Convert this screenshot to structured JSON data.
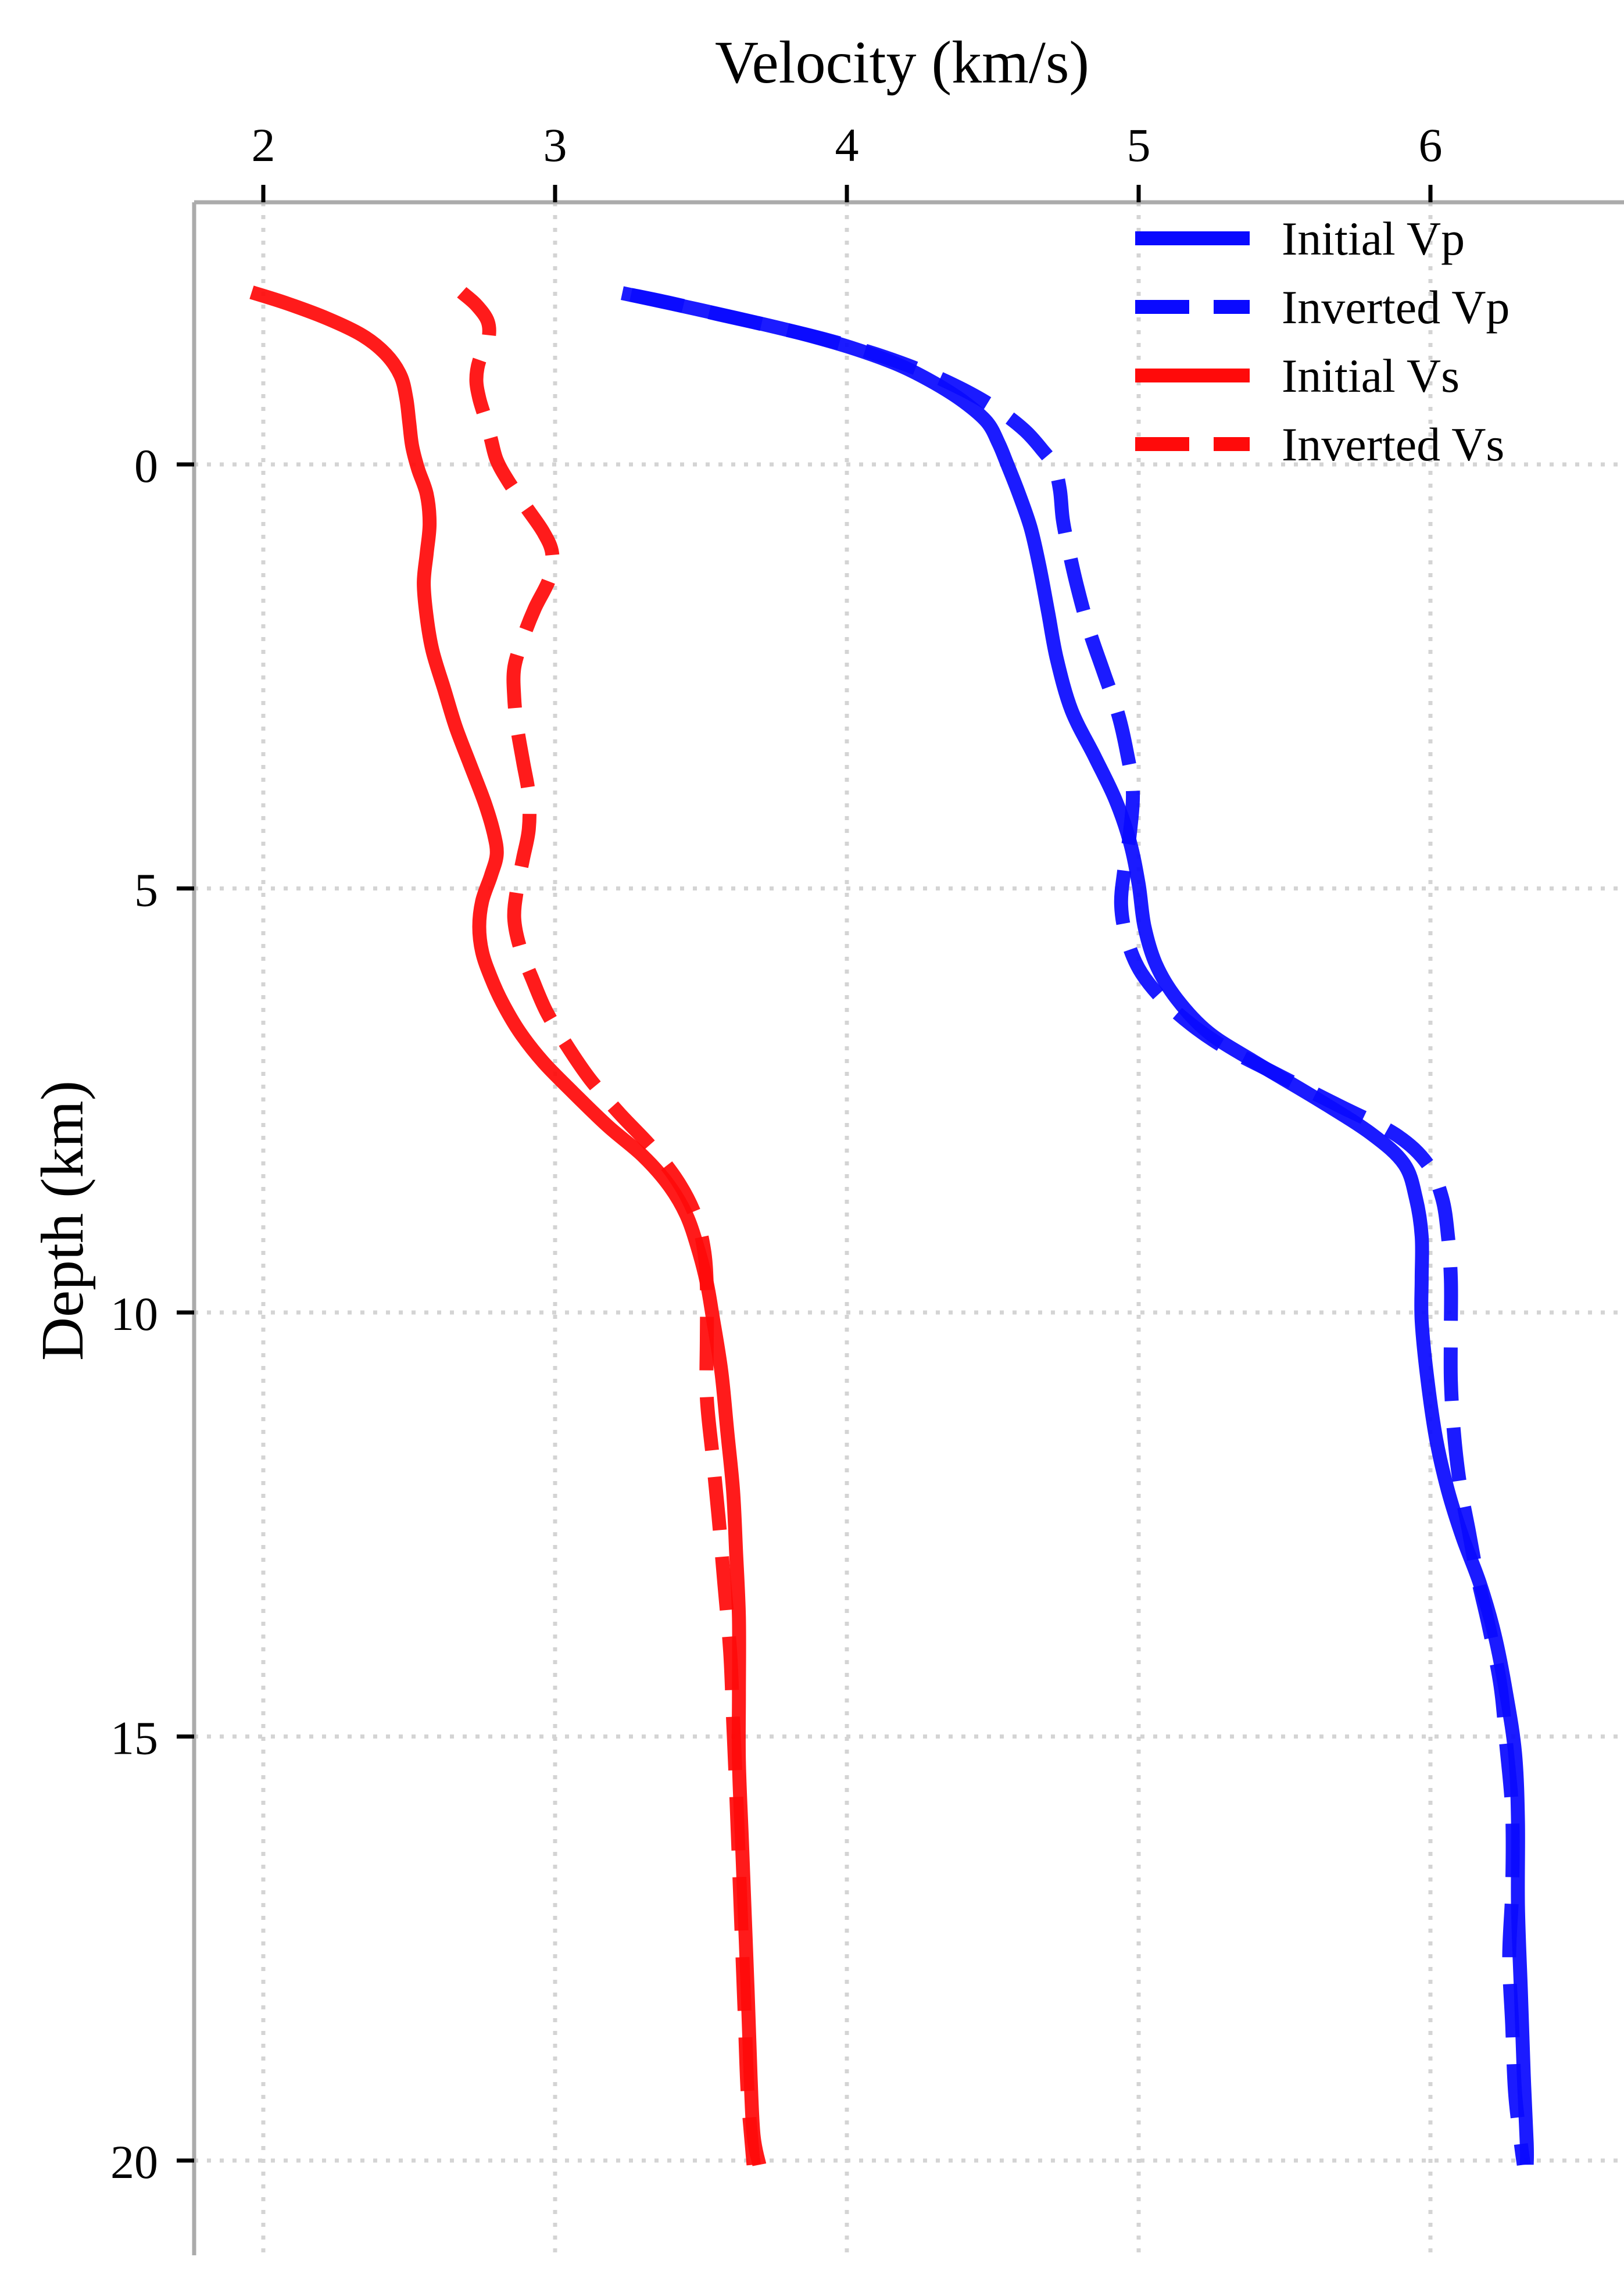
{
  "chart_data": {
    "type": "line",
    "title": "",
    "xlabel": "Velocity (km/s)",
    "ylabel": "Depth (km)",
    "x_axis_position": "top",
    "x_ticks": [
      2,
      3,
      4,
      5,
      6
    ],
    "y_ticks": [
      0,
      5,
      10,
      15,
      20
    ],
    "xlim": [
      1.77,
      6.66
    ],
    "ylim": [
      21.1,
      -3.1
    ],
    "y_axis_inverted": true,
    "grid": "dotted",
    "legend_position": "upper-right",
    "colors": {
      "vp": "#0a0aff",
      "vs": "#ff0a0a",
      "gridline": "#d4d4d4",
      "spine": "#ababab",
      "tick": "#000000",
      "text": "#000000"
    },
    "series": [
      {
        "name": "Initial Vp",
        "color": "#0a0aff",
        "style": "solid",
        "points": [
          [
            3.23,
            -2.02
          ],
          [
            3.34,
            -1.94
          ],
          [
            3.5,
            -1.82
          ],
          [
            3.68,
            -1.68
          ],
          [
            3.86,
            -1.53
          ],
          [
            4.03,
            -1.36
          ],
          [
            4.18,
            -1.17
          ],
          [
            4.3,
            -0.96
          ],
          [
            4.4,
            -0.74
          ],
          [
            4.48,
            -0.5
          ],
          [
            4.52,
            -0.25
          ],
          [
            4.55,
            0.0
          ],
          [
            4.59,
            0.35
          ],
          [
            4.63,
            0.75
          ],
          [
            4.66,
            1.2
          ],
          [
            4.69,
            1.75
          ],
          [
            4.72,
            2.3
          ],
          [
            4.77,
            2.9
          ],
          [
            4.85,
            3.45
          ],
          [
            4.92,
            3.95
          ],
          [
            4.97,
            4.45
          ],
          [
            5.0,
            4.95
          ],
          [
            5.02,
            5.45
          ],
          [
            5.06,
            5.9
          ],
          [
            5.13,
            6.3
          ],
          [
            5.24,
            6.7
          ],
          [
            5.4,
            7.05
          ],
          [
            5.62,
            7.5
          ],
          [
            5.8,
            7.9
          ],
          [
            5.91,
            8.25
          ],
          [
            5.95,
            8.65
          ],
          [
            5.97,
            9.1
          ],
          [
            5.97,
            9.6
          ],
          [
            5.97,
            10.1
          ],
          [
            5.99,
            10.8
          ],
          [
            6.02,
            11.5
          ],
          [
            6.06,
            12.1
          ],
          [
            6.11,
            12.65
          ],
          [
            6.17,
            13.2
          ],
          [
            6.22,
            13.8
          ],
          [
            6.26,
            14.5
          ],
          [
            6.29,
            15.2
          ],
          [
            6.3,
            16.0
          ],
          [
            6.3,
            17.0
          ],
          [
            6.31,
            18.0
          ],
          [
            6.32,
            19.0
          ],
          [
            6.33,
            19.8
          ],
          [
            6.33,
            20.05
          ]
        ]
      },
      {
        "name": "Inverted Vp",
        "color": "#0a0aff",
        "style": "dashed",
        "points": [
          [
            3.26,
            -2.0
          ],
          [
            3.4,
            -1.9
          ],
          [
            3.56,
            -1.77
          ],
          [
            3.74,
            -1.63
          ],
          [
            3.92,
            -1.48
          ],
          [
            4.1,
            -1.3
          ],
          [
            4.26,
            -1.1
          ],
          [
            4.4,
            -0.88
          ],
          [
            4.52,
            -0.64
          ],
          [
            4.61,
            -0.4
          ],
          [
            4.67,
            -0.17
          ],
          [
            4.71,
            0.02
          ],
          [
            4.73,
            0.3
          ],
          [
            4.74,
            0.65
          ],
          [
            4.76,
            1.0
          ],
          [
            4.79,
            1.45
          ],
          [
            4.83,
            1.95
          ],
          [
            4.88,
            2.45
          ],
          [
            4.93,
            2.95
          ],
          [
            4.96,
            3.4
          ],
          [
            4.98,
            3.85
          ],
          [
            4.97,
            4.35
          ],
          [
            4.95,
            4.8
          ],
          [
            4.94,
            5.2
          ],
          [
            4.96,
            5.6
          ],
          [
            5.01,
            6.0
          ],
          [
            5.11,
            6.4
          ],
          [
            5.26,
            6.8
          ],
          [
            5.45,
            7.15
          ],
          [
            5.68,
            7.55
          ],
          [
            5.88,
            7.9
          ],
          [
            5.99,
            8.25
          ],
          [
            6.04,
            8.65
          ],
          [
            6.06,
            9.1
          ],
          [
            6.07,
            9.6
          ],
          [
            6.07,
            10.2
          ],
          [
            6.07,
            10.8
          ],
          [
            6.08,
            11.4
          ],
          [
            6.1,
            12.0
          ],
          [
            6.13,
            12.55
          ],
          [
            6.16,
            13.1
          ],
          [
            6.2,
            13.7
          ],
          [
            6.24,
            14.4
          ],
          [
            6.26,
            15.1
          ],
          [
            6.28,
            15.9
          ],
          [
            6.28,
            16.8
          ],
          [
            6.27,
            17.6
          ],
          [
            6.28,
            18.4
          ],
          [
            6.29,
            19.2
          ],
          [
            6.31,
            19.8
          ],
          [
            6.32,
            20.05
          ]
        ]
      },
      {
        "name": "Initial Vs",
        "color": "#ff0a0a",
        "style": "solid",
        "points": [
          [
            1.96,
            -2.03
          ],
          [
            2.08,
            -1.9
          ],
          [
            2.22,
            -1.72
          ],
          [
            2.34,
            -1.52
          ],
          [
            2.42,
            -1.3
          ],
          [
            2.47,
            -1.05
          ],
          [
            2.49,
            -0.78
          ],
          [
            2.5,
            -0.5
          ],
          [
            2.51,
            -0.22
          ],
          [
            2.53,
            0.05
          ],
          [
            2.56,
            0.35
          ],
          [
            2.57,
            0.7
          ],
          [
            2.56,
            1.05
          ],
          [
            2.55,
            1.4
          ],
          [
            2.56,
            1.8
          ],
          [
            2.58,
            2.2
          ],
          [
            2.62,
            2.65
          ],
          [
            2.66,
            3.1
          ],
          [
            2.71,
            3.55
          ],
          [
            2.76,
            4.0
          ],
          [
            2.79,
            4.35
          ],
          [
            2.8,
            4.6
          ],
          [
            2.78,
            4.85
          ],
          [
            2.75,
            5.15
          ],
          [
            2.74,
            5.45
          ],
          [
            2.75,
            5.75
          ],
          [
            2.78,
            6.05
          ],
          [
            2.82,
            6.35
          ],
          [
            2.88,
            6.7
          ],
          [
            2.96,
            7.05
          ],
          [
            3.06,
            7.4
          ],
          [
            3.18,
            7.8
          ],
          [
            3.3,
            8.15
          ],
          [
            3.39,
            8.5
          ],
          [
            3.45,
            8.85
          ],
          [
            3.49,
            9.25
          ],
          [
            3.52,
            9.65
          ],
          [
            3.54,
            10.05
          ],
          [
            3.57,
            10.7
          ],
          [
            3.59,
            11.4
          ],
          [
            3.61,
            12.1
          ],
          [
            3.62,
            12.8
          ],
          [
            3.63,
            13.6
          ],
          [
            3.63,
            14.5
          ],
          [
            3.63,
            15.3
          ],
          [
            3.64,
            16.2
          ],
          [
            3.65,
            17.1
          ],
          [
            3.66,
            18.0
          ],
          [
            3.67,
            19.0
          ],
          [
            3.68,
            19.7
          ],
          [
            3.7,
            20.05
          ]
        ]
      },
      {
        "name": "Inverted Vs",
        "color": "#ff0a0a",
        "style": "dashed",
        "points": [
          [
            2.68,
            -2.03
          ],
          [
            2.73,
            -1.88
          ],
          [
            2.77,
            -1.68
          ],
          [
            2.77,
            -1.45
          ],
          [
            2.74,
            -1.22
          ],
          [
            2.73,
            -1.0
          ],
          [
            2.74,
            -0.78
          ],
          [
            2.76,
            -0.55
          ],
          [
            2.78,
            -0.3
          ],
          [
            2.8,
            -0.05
          ],
          [
            2.84,
            0.2
          ],
          [
            2.9,
            0.5
          ],
          [
            2.96,
            0.8
          ],
          [
            2.99,
            1.05
          ],
          [
            2.98,
            1.35
          ],
          [
            2.93,
            1.7
          ],
          [
            2.89,
            2.05
          ],
          [
            2.86,
            2.4
          ],
          [
            2.86,
            2.75
          ],
          [
            2.87,
            3.1
          ],
          [
            2.89,
            3.5
          ],
          [
            2.91,
            3.9
          ],
          [
            2.91,
            4.3
          ],
          [
            2.89,
            4.65
          ],
          [
            2.87,
            5.0
          ],
          [
            2.86,
            5.35
          ],
          [
            2.88,
            5.7
          ],
          [
            2.92,
            6.05
          ],
          [
            2.97,
            6.45
          ],
          [
            3.04,
            6.85
          ],
          [
            3.12,
            7.25
          ],
          [
            3.22,
            7.65
          ],
          [
            3.33,
            8.05
          ],
          [
            3.42,
            8.45
          ],
          [
            3.48,
            8.85
          ],
          [
            3.51,
            9.25
          ],
          [
            3.52,
            9.7
          ],
          [
            3.52,
            10.3
          ],
          [
            3.52,
            11.0
          ],
          [
            3.54,
            11.7
          ],
          [
            3.56,
            12.4
          ],
          [
            3.58,
            13.2
          ],
          [
            3.6,
            14.0
          ],
          [
            3.61,
            14.8
          ],
          [
            3.62,
            15.6
          ],
          [
            3.63,
            16.5
          ],
          [
            3.64,
            17.4
          ],
          [
            3.65,
            18.3
          ],
          [
            3.66,
            19.2
          ],
          [
            3.68,
            20.05
          ]
        ]
      }
    ],
    "legend_entries": [
      "Initial Vp",
      "Inverted Vp",
      "Initial Vs",
      "Inverted Vs"
    ]
  }
}
